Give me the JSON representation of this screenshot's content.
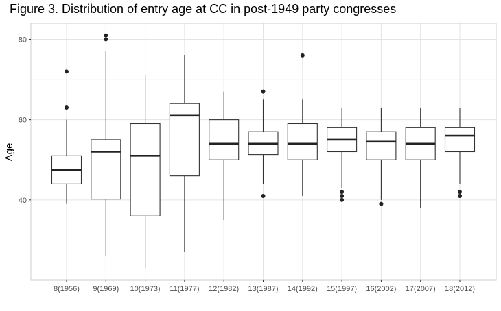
{
  "chart_data": {
    "type": "box",
    "title": "Figure 3. Distribution of entry age at CC in post-1949 party congresses",
    "xlabel": "",
    "ylabel": "Age",
    "ylim": [
      20,
      84
    ],
    "yticks": [
      40,
      60,
      80
    ],
    "grid": true,
    "legend": "none",
    "categories": [
      "8(1956)",
      "9(1969)",
      "10(1973)",
      "11(1977)",
      "12(1982)",
      "13(1987)",
      "14(1992)",
      "15(1997)",
      "16(2002)",
      "17(2007)",
      "18(2012)"
    ],
    "boxes": [
      {
        "category": "8(1956)",
        "whisker_low": 39,
        "q1": 44,
        "median": 47.5,
        "q3": 51,
        "whisker_high": 60,
        "outliers": [
          63,
          72
        ]
      },
      {
        "category": "9(1969)",
        "whisker_low": 26,
        "q1": 40.2,
        "median": 52,
        "q3": 55,
        "whisker_high": 77,
        "outliers": [
          80,
          81
        ]
      },
      {
        "category": "10(1973)",
        "whisker_low": 23,
        "q1": 36,
        "median": 51,
        "q3": 59,
        "whisker_high": 71,
        "outliers": []
      },
      {
        "category": "11(1977)",
        "whisker_low": 27,
        "q1": 46,
        "median": 61,
        "q3": 64,
        "whisker_high": 76,
        "outliers": []
      },
      {
        "category": "12(1982)",
        "whisker_low": 35,
        "q1": 50,
        "median": 54,
        "q3": 60,
        "whisker_high": 67,
        "outliers": []
      },
      {
        "category": "13(1987)",
        "whisker_low": 44,
        "q1": 51.3,
        "median": 54,
        "q3": 57,
        "whisker_high": 65,
        "outliers": [
          41,
          67
        ]
      },
      {
        "category": "14(1992)",
        "whisker_low": 41,
        "q1": 50,
        "median": 54,
        "q3": 59,
        "whisker_high": 65,
        "outliers": [
          76
        ]
      },
      {
        "category": "15(1997)",
        "whisker_low": 43,
        "q1": 52,
        "median": 55,
        "q3": 58,
        "whisker_high": 63,
        "outliers": [
          40,
          41,
          42
        ]
      },
      {
        "category": "16(2002)",
        "whisker_low": 40,
        "q1": 50,
        "median": 54.5,
        "q3": 57,
        "whisker_high": 63,
        "outliers": [
          39
        ]
      },
      {
        "category": "17(2007)",
        "whisker_low": 38,
        "q1": 50,
        "median": 54,
        "q3": 58,
        "whisker_high": 63,
        "outliers": []
      },
      {
        "category": "18(2012)",
        "whisker_low": 44,
        "q1": 52,
        "median": 56,
        "q3": 58,
        "whisker_high": 63,
        "outliers": [
          41,
          42
        ]
      }
    ],
    "colors": {
      "panel_background": "#ffffff",
      "panel_border": "#cccccc",
      "grid_major": "#e3e3e3",
      "grid_minor": "#f1f1f1",
      "box_stroke": "#333333",
      "box_fill": "#ffffff",
      "median": "#222222",
      "outlier": "#222222",
      "tick_label": "#4d4d4d",
      "axis_title": "#000000"
    }
  }
}
